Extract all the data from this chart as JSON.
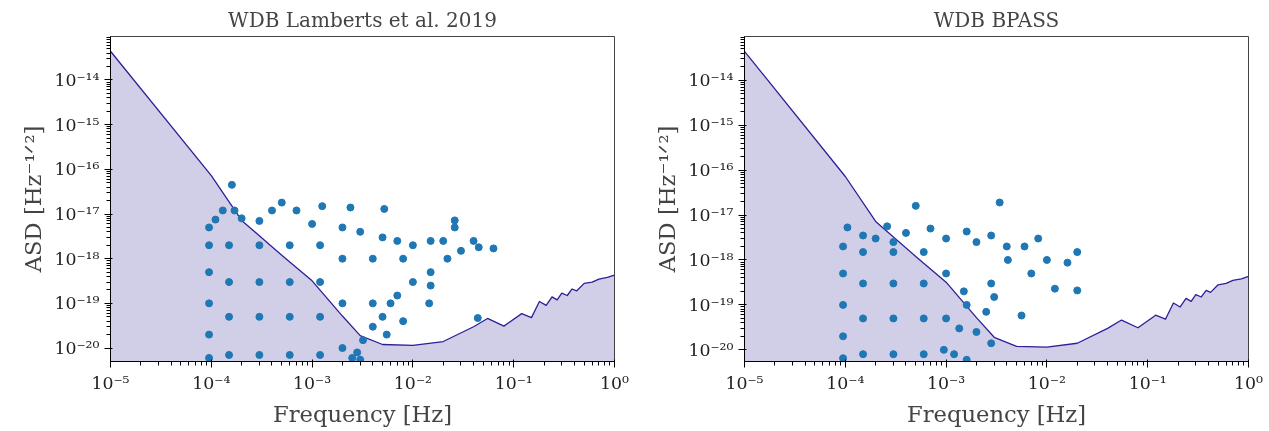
{
  "chart_data": [
    {
      "type": "scatter",
      "title": "WDB Lamberts et al. 2019",
      "xlabel": "Frequency [Hz]",
      "ylabel": "ASD [Hz⁻¹ᐟ²]",
      "log": "xy",
      "grid": false,
      "xlim": [
        1e-05,
        1
      ],
      "ylim": [
        5e-21,
        9.4e-14
      ],
      "xticks": [
        {
          "value": 1e-05,
          "label": "10⁻⁵"
        },
        {
          "value": 0.0001,
          "label": "10⁻⁴"
        },
        {
          "value": 0.001,
          "label": "10⁻³"
        },
        {
          "value": 0.01,
          "label": "10⁻²"
        },
        {
          "value": 0.1,
          "label": "10⁻¹"
        },
        {
          "value": 1,
          "label": "10⁰"
        }
      ],
      "yticks": [
        {
          "value": 1e-20,
          "label": "10⁻²⁰"
        },
        {
          "value": 1e-19,
          "label": "10⁻¹⁹"
        },
        {
          "value": 1e-18,
          "label": "10⁻¹⁸"
        },
        {
          "value": 1e-17,
          "label": "10⁻¹⁷"
        },
        {
          "value": 1e-16,
          "label": "10⁻¹⁶"
        },
        {
          "value": 1e-15,
          "label": "10⁻¹⁵"
        },
        {
          "value": 1e-14,
          "label": "10⁻¹⁴"
        }
      ],
      "series": [
        {
          "type": "area",
          "color": "#2e1f96",
          "x": [
            1e-05,
            0.0001,
            0.0002,
            0.0005,
            0.001,
            0.002,
            0.003,
            0.005,
            0.01,
            0.02,
            0.04,
            0.055,
            0.08,
            0.12,
            0.15,
            0.18,
            0.21,
            0.24,
            0.27,
            0.3,
            0.34,
            0.38,
            0.42,
            0.5,
            0.6,
            0.7,
            0.85,
            1
          ],
          "values": [
            4.4e-14,
            7.2e-17,
            7.2e-18,
            1.2e-18,
            3.2e-19,
            5.2e-20,
            1.9e-20,
            1.2e-20,
            1.15e-20,
            1.4e-20,
            3e-20,
            4.6e-20,
            3.1e-20,
            5.9e-20,
            4.8e-20,
            1.1e-19,
            9e-20,
            1.4e-19,
            1.2e-19,
            1.7e-19,
            1.5e-19,
            2.1e-19,
            1.9e-19,
            2.8e-19,
            3e-19,
            3.5e-19,
            3.8e-19,
            4.3e-19
          ]
        },
        {
          "color": "#1f77b4",
          "marker": "circle",
          "x": [
            9.5e-05,
            9.5e-05,
            9.5e-05,
            9.5e-05,
            9.5e-05,
            9.5e-05,
            0.00011,
            0.00013,
            0.00016,
            0.00017,
            0.0002,
            0.0003,
            0.0004,
            0.0005,
            0.0007,
            0.00126,
            0.001,
            0.002,
            0.0024,
            0.003,
            0.0052,
            0.005,
            0.007,
            0.01,
            0.015,
            0.02,
            0.026,
            0.026,
            0.04,
            0.045,
            0.063,
            0.03,
            0.022,
            0.015,
            0.01,
            0.015,
            0.007,
            0.0145,
            0.006,
            0.044,
            0.005,
            0.008,
            0.004,
            0.0055,
            0.0032,
            0.0028,
            0.0025,
            0.003,
            0.00015,
            0.00015,
            0.00015,
            0.00015,
            0.0003,
            0.0003,
            0.0003,
            0.0003,
            0.0006,
            0.0006,
            0.0006,
            0.0006,
            0.0012,
            0.0012,
            0.0012,
            0.0012,
            0.002,
            0.002,
            0.002,
            0.004,
            0.004,
            0.008
          ],
          "values": [
            6e-21,
            2e-20,
            1e-19,
            5e-19,
            2e-18,
            5e-18,
            7.5e-18,
            1.2e-17,
            4.5e-17,
            1.2e-17,
            8e-18,
            7e-18,
            1.2e-17,
            1.8e-17,
            1.2e-17,
            1.5e-17,
            6e-18,
            5e-18,
            1.4e-17,
            4e-18,
            1.3e-17,
            3e-18,
            2.5e-18,
            2e-18,
            2.5e-18,
            2.5e-18,
            7.2e-18,
            5e-18,
            2.5e-18,
            1.8e-18,
            1.7e-18,
            1.5e-18,
            1e-18,
            5e-19,
            3e-19,
            2.5e-19,
            1.5e-19,
            1e-19,
            1e-19,
            4.7e-20,
            5e-20,
            4e-20,
            3e-20,
            2e-20,
            1.5e-20,
            8e-21,
            6e-21,
            5.5e-21,
            7e-21,
            5e-20,
            3e-19,
            2e-18,
            7e-21,
            5e-20,
            3e-19,
            2e-18,
            7e-21,
            5e-20,
            3e-19,
            2e-18,
            7e-21,
            5e-20,
            3e-19,
            2e-18,
            1e-20,
            1e-19,
            1e-18,
            1e-19,
            1e-18,
            1e-18
          ]
        }
      ]
    },
    {
      "type": "scatter",
      "title": "WDB BPASS",
      "xlabel": "Frequency [Hz]",
      "ylabel": "ASD [Hz⁻¹ᐟ²]",
      "log": "xy",
      "grid": false,
      "xlim": [
        1e-05,
        1
      ],
      "ylim": [
        5.5e-21,
        9.4e-14
      ],
      "xticks": [
        {
          "value": 1e-05,
          "label": "10⁻⁵"
        },
        {
          "value": 0.0001,
          "label": "10⁻⁴"
        },
        {
          "value": 0.001,
          "label": "10⁻³"
        },
        {
          "value": 0.01,
          "label": "10⁻²"
        },
        {
          "value": 0.1,
          "label": "10⁻¹"
        },
        {
          "value": 1,
          "label": "10⁰"
        }
      ],
      "yticks": [
        {
          "value": 1e-20,
          "label": "10⁻²⁰"
        },
        {
          "value": 1e-19,
          "label": "10⁻¹⁹"
        },
        {
          "value": 1e-18,
          "label": "10⁻¹⁸"
        },
        {
          "value": 1e-17,
          "label": "10⁻¹⁷"
        },
        {
          "value": 1e-16,
          "label": "10⁻¹⁶"
        },
        {
          "value": 1e-15,
          "label": "10⁻¹⁵"
        },
        {
          "value": 1e-14,
          "label": "10⁻¹⁴"
        }
      ],
      "series": [
        {
          "type": "area",
          "color": "#2e1f96",
          "x": [
            1e-05,
            0.0001,
            0.0002,
            0.0005,
            0.001,
            0.002,
            0.003,
            0.005,
            0.01,
            0.02,
            0.04,
            0.055,
            0.08,
            0.12,
            0.15,
            0.18,
            0.21,
            0.24,
            0.27,
            0.3,
            0.34,
            0.38,
            0.42,
            0.5,
            0.6,
            0.7,
            0.85,
            1
          ],
          "values": [
            4.4e-14,
            7.2e-17,
            7.2e-18,
            1.2e-18,
            3.2e-19,
            5.2e-20,
            1.9e-20,
            1.2e-20,
            1.15e-20,
            1.4e-20,
            3e-20,
            4.6e-20,
            3.1e-20,
            5.9e-20,
            4.8e-20,
            1.1e-19,
            9e-20,
            1.4e-19,
            1.2e-19,
            1.7e-19,
            1.5e-19,
            2.1e-19,
            1.9e-19,
            2.8e-19,
            3e-19,
            3.5e-19,
            3.8e-19,
            4.3e-19
          ]
        },
        {
          "color": "#1f77b4",
          "marker": "circle",
          "x": [
            9.5e-05,
            9.5e-05,
            9.5e-05,
            9.5e-05,
            9.5e-05,
            0.000105,
            0.00015,
            0.0002,
            0.00026,
            0.0003,
            0.0004,
            0.0005,
            0.0007,
            0.001,
            0.0016,
            0.002,
            0.0028,
            0.0034,
            0.004,
            0.006,
            0.0082,
            0.01,
            0.016,
            0.02,
            0.02,
            0.012,
            0.007,
            0.0041,
            0.0028,
            0.003,
            0.0056,
            0.0016,
            0.0025,
            0.00135,
            0.002,
            0.0028,
            0.00095,
            0.0016,
            0.0012,
            0.00015,
            0.00015,
            0.00015,
            0.00015,
            0.0003,
            0.0003,
            0.0003,
            0.0003,
            0.0006,
            0.0006,
            0.0006,
            0.0006,
            0.001,
            0.001,
            0.0015
          ],
          "values": [
            6.5e-21,
            2e-20,
            1e-19,
            5e-19,
            2e-18,
            5.3e-18,
            3.5e-18,
            3e-18,
            5.6e-18,
            2.5e-18,
            4e-18,
            1.6e-17,
            5e-18,
            3e-18,
            4.3e-18,
            2.5e-18,
            3.5e-18,
            1.9e-17,
            2e-18,
            2e-18,
            3e-18,
            1e-18,
            8.7e-19,
            1.5e-18,
            2.1e-19,
            2.3e-19,
            5e-19,
            1e-18,
            3e-19,
            1.5e-19,
            5.8e-20,
            1e-19,
            7e-20,
            3e-20,
            2.5e-20,
            1.4e-20,
            1e-20,
            6e-21,
            8e-21,
            8e-21,
            5e-20,
            3e-19,
            1.5e-18,
            8e-21,
            5e-20,
            3e-19,
            1.5e-18,
            8e-21,
            5e-20,
            3e-19,
            1.5e-18,
            5e-19,
            5e-20,
            2e-19
          ]
        }
      ]
    }
  ]
}
